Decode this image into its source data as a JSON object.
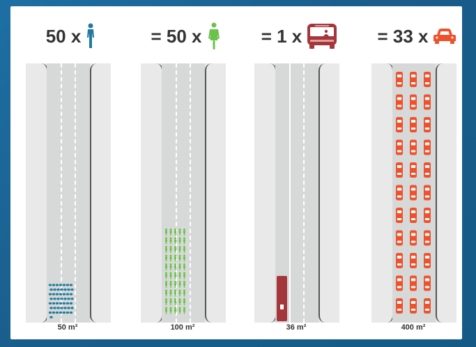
{
  "columns": [
    {
      "heading": "50 x",
      "icon": "pedestrian-icon",
      "icon_color": "#1f7a9e",
      "area": "50 m²",
      "count": 50
    },
    {
      "heading": "= 50 x",
      "icon": "cyclist-icon",
      "icon_color": "#6bc24a",
      "area": "100 m²",
      "count": 50
    },
    {
      "heading": "= 1 x",
      "icon": "bus-icon",
      "icon_color": "#a5373b",
      "area": "36 m²",
      "count": 1
    },
    {
      "heading": "= 33 x",
      "icon": "car-icon",
      "icon_color": "#f0512d",
      "area": "400 m²",
      "count": 33
    }
  ]
}
